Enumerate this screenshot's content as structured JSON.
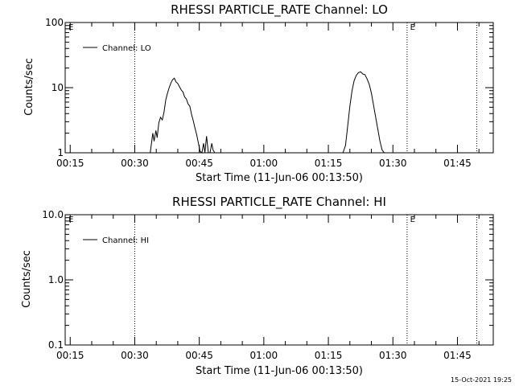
{
  "chart_data": [
    {
      "type": "line",
      "title": "RHESSI PARTICLE_RATE Channel: LO",
      "xlabel": "Start Time (11-Jun-06 00:13:50)",
      "ylabel": "Counts/sec",
      "yscale": "log",
      "ylim": [
        1,
        100
      ],
      "yticks": [
        {
          "value": 1,
          "label": "1"
        },
        {
          "value": 10,
          "label": "10"
        },
        {
          "value": 100,
          "label": "100"
        }
      ],
      "xlim_minutes": [
        13.83,
        113.33
      ],
      "xticks": [
        {
          "value": 15,
          "label": "00:15"
        },
        {
          "value": 30,
          "label": "00:30"
        },
        {
          "value": 45,
          "label": "00:45"
        },
        {
          "value": 60,
          "label": "01:00"
        },
        {
          "value": 75,
          "label": "01:15"
        },
        {
          "value": 90,
          "label": "01:30"
        },
        {
          "value": 105,
          "label": "01:45"
        }
      ],
      "vlines_minutes": [
        30.0,
        93.3,
        109.5
      ],
      "markers": [
        {
          "x_minutes": 14.6,
          "label": "E"
        },
        {
          "x_minutes": 94.0,
          "label": "E"
        }
      ],
      "legend": "Channel: LO",
      "series": [
        {
          "name": "Channel: LO",
          "segments": [
            {
              "x": [
                33.6,
                34.2,
                34.5,
                34.9,
                35.2,
                35.6,
                36.0,
                36.4,
                36.8,
                37.2,
                37.6,
                38.0,
                38.4,
                38.8,
                39.2,
                39.6,
                40.0,
                40.4,
                40.8,
                41.2,
                41.6,
                42.0,
                42.4,
                42.8,
                43.2,
                43.6,
                44.0,
                44.4,
                44.8,
                45.2,
                45.6,
                46.0,
                46.3,
                46.7,
                47.1
              ],
              "y": [
                0.9,
                2.0,
                1.5,
                2.2,
                1.7,
                2.9,
                3.5,
                3.2,
                4.2,
                6.5,
                8.2,
                10.0,
                11.8,
                13.2,
                14.0,
                12.2,
                11.6,
                10.3,
                9.2,
                8.6,
                7.2,
                6.7,
                5.6,
                5.2,
                3.9,
                3.1,
                2.4,
                1.9,
                1.4,
                1.05,
                0.9,
                1.4,
                1.0,
                1.8,
                0.9
              ]
            },
            {
              "x": [
                47.5,
                47.9,
                48.2,
                48.6
              ],
              "y": [
                0.9,
                1.4,
                1.1,
                0.9
              ]
            },
            {
              "x": [
                78.4,
                79.0,
                79.5,
                80.0,
                80.5,
                81.0,
                81.5,
                82.0,
                82.5,
                83.0,
                83.5,
                84.0,
                84.5,
                85.0,
                85.5,
                86.0,
                86.5,
                87.0,
                87.5,
                88.0
              ],
              "y": [
                0.9,
                1.3,
                2.6,
                5.2,
                9.0,
                12.8,
                15.5,
                17.0,
                17.5,
                16.2,
                15.8,
                13.6,
                11.2,
                8.3,
                5.4,
                3.5,
                2.3,
                1.5,
                1.1,
                0.9
              ]
            }
          ]
        }
      ]
    },
    {
      "type": "line",
      "title": "RHESSI PARTICLE_RATE Channel: HI",
      "xlabel": "Start Time (11-Jun-06 00:13:50)",
      "ylabel": "Counts/sec",
      "yscale": "log",
      "ylim": [
        0.1,
        10
      ],
      "yticks": [
        {
          "value": 0.1,
          "label": "0.1"
        },
        {
          "value": 1,
          "label": "1.0"
        },
        {
          "value": 10,
          "label": "10.0"
        }
      ],
      "xlim_minutes": [
        13.83,
        113.33
      ],
      "xticks": [
        {
          "value": 15,
          "label": "00:15"
        },
        {
          "value": 30,
          "label": "00:30"
        },
        {
          "value": 45,
          "label": "00:45"
        },
        {
          "value": 60,
          "label": "01:00"
        },
        {
          "value": 75,
          "label": "01:15"
        },
        {
          "value": 90,
          "label": "01:30"
        },
        {
          "value": 105,
          "label": "01:45"
        }
      ],
      "vlines_minutes": [
        30.0,
        93.3,
        109.5
      ],
      "markers": [
        {
          "x_minutes": 14.6,
          "label": "E"
        },
        {
          "x_minutes": 94.0,
          "label": "E"
        }
      ],
      "legend": "Channel: HI",
      "series": [
        {
          "name": "Channel: HI",
          "segments": []
        }
      ]
    }
  ],
  "timestamp": "15-Oct-2021 19:25"
}
